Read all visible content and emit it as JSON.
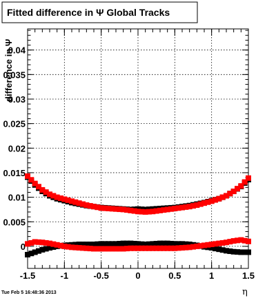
{
  "title": "Fitted difference in  Ψ    Global Tracks",
  "timestamp": "Tue Feb  5 16:48:36 2013",
  "chart_data": {
    "type": "scatter",
    "title": "Fitted difference in  Ψ    Global Tracks",
    "xlabel": "η",
    "ylabel": "difference in  Ψ",
    "xlim": [
      -1.5,
      1.5
    ],
    "ylim": [
      -0.0045,
      0.0443
    ],
    "grid": true,
    "xticks": [
      -1.5,
      -1,
      -0.5,
      0,
      0.5,
      1,
      1.5
    ],
    "xtick_labels": [
      "-1.5",
      "-1",
      "-0.5",
      "0",
      "0.5",
      "1",
      "1.5"
    ],
    "yticks": [
      0,
      0.005,
      0.01,
      0.015,
      0.02,
      0.025,
      0.03,
      0.035,
      0.04
    ],
    "ytick_labels": [
      "0",
      "0.005",
      "0.01",
      "0.015",
      "0.02",
      "0.025",
      "0.03",
      "0.035",
      "0.04"
    ],
    "series": [
      {
        "name": "",
        "color": "#000000",
        "marker": "square",
        "x": [
          -1.5,
          -1.4,
          -1.3,
          -1.2,
          -1.1,
          -1.0,
          -0.9,
          -0.8,
          -0.7,
          -0.6,
          -0.5,
          -0.4,
          -0.3,
          -0.2,
          -0.1,
          0.0,
          0.1,
          0.2,
          0.3,
          0.4,
          0.5,
          0.6,
          0.7,
          0.8,
          0.9,
          1.0,
          1.1,
          1.2,
          1.3,
          1.4,
          1.5
        ],
        "y": [
          0.0141,
          0.0125,
          0.0112,
          0.0103,
          0.0097,
          0.0093,
          0.0089,
          0.0086,
          0.0083,
          0.0081,
          0.0079,
          0.0078,
          0.0077,
          0.0076,
          0.0075,
          0.0076,
          0.0075,
          0.0076,
          0.0077,
          0.0078,
          0.0079,
          0.0081,
          0.0083,
          0.0086,
          0.0089,
          0.0093,
          0.0097,
          0.0103,
          0.0112,
          0.0122,
          0.0136
        ]
      },
      {
        "name": "",
        "color": "#ff0000",
        "marker": "square",
        "x": [
          -1.5,
          -1.4,
          -1.3,
          -1.2,
          -1.1,
          -1.0,
          -0.9,
          -0.8,
          -0.7,
          -0.6,
          -0.5,
          -0.4,
          -0.3,
          -0.2,
          -0.1,
          0.0,
          0.1,
          0.2,
          0.3,
          0.4,
          0.5,
          0.6,
          0.7,
          0.8,
          0.9,
          1.0,
          1.1,
          1.2,
          1.3,
          1.4,
          1.5
        ],
        "y": [
          0.0143,
          0.0128,
          0.0115,
          0.0106,
          0.01,
          0.0096,
          0.0092,
          0.0088,
          0.0084,
          0.0081,
          0.0078,
          0.0077,
          0.0076,
          0.0075,
          0.0073,
          0.0071,
          0.007,
          0.0071,
          0.0073,
          0.0075,
          0.0077,
          0.0079,
          0.0081,
          0.0084,
          0.0088,
          0.0092,
          0.0097,
          0.0103,
          0.0112,
          0.0123,
          0.0139
        ]
      },
      {
        "name": "",
        "color": "#000000",
        "marker": "square",
        "x": [
          -1.5,
          -1.4,
          -1.3,
          -1.2,
          -1.1,
          -1.0,
          -0.9,
          -0.8,
          -0.7,
          -0.6,
          -0.5,
          -0.4,
          -0.3,
          -0.2,
          -0.1,
          0.0,
          0.1,
          0.2,
          0.3,
          0.4,
          0.5,
          0.6,
          0.7,
          0.8,
          0.9,
          1.0,
          1.1,
          1.2,
          1.3,
          1.4,
          1.5
        ],
        "y": [
          -0.0017,
          -0.0012,
          -0.0007,
          -0.0003,
          0.0,
          0.0002,
          0.0003,
          0.0004,
          0.0004,
          0.0004,
          0.0005,
          0.0005,
          0.0005,
          0.0006,
          0.0006,
          0.0005,
          0.0004,
          0.0005,
          0.0006,
          0.0006,
          0.0005,
          0.0005,
          0.0004,
          0.0002,
          -0.0001,
          -0.0003,
          -0.0006,
          -0.0009,
          -0.0011,
          -0.0012,
          -0.0012
        ]
      },
      {
        "name": "",
        "color": "#ff0000",
        "marker": "square",
        "x": [
          -1.5,
          -1.4,
          -1.3,
          -1.2,
          -1.1,
          -1.0,
          -0.9,
          -0.8,
          -0.7,
          -0.6,
          -0.5,
          -0.4,
          -0.3,
          -0.2,
          -0.1,
          0.0,
          0.1,
          0.2,
          0.3,
          0.4,
          0.5,
          0.6,
          0.7,
          0.8,
          0.9,
          1.0,
          1.1,
          1.2,
          1.3,
          1.4,
          1.5
        ],
        "y": [
          0.0005,
          0.0009,
          0.0008,
          0.0006,
          0.0003,
          0.0,
          -0.0002,
          -0.0003,
          -0.0004,
          -0.0005,
          -0.0005,
          -0.0005,
          -0.0005,
          -0.0005,
          -0.0004,
          -0.0004,
          -0.0004,
          -0.0004,
          -0.0004,
          -0.0004,
          -0.0004,
          -0.0003,
          -0.0002,
          0.0,
          0.0002,
          0.0004,
          0.0006,
          0.0008,
          0.0011,
          0.0013,
          0.001
        ]
      }
    ]
  }
}
